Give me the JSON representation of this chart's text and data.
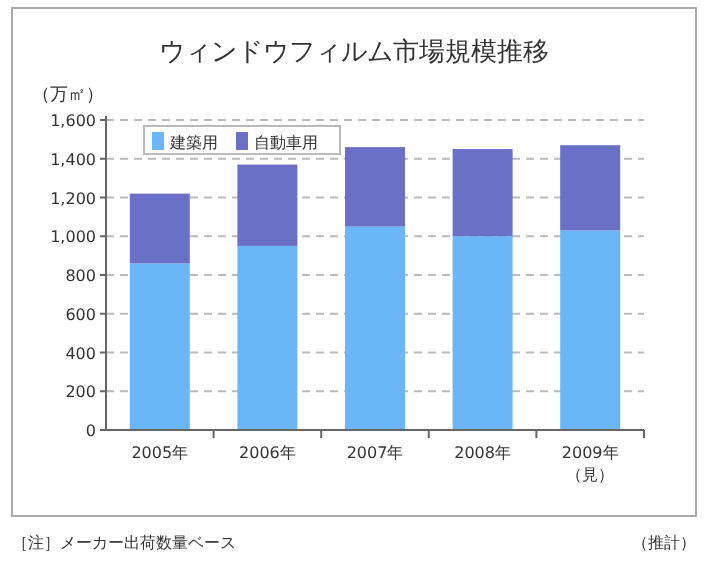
{
  "chart_data": {
    "type": "bar",
    "title": "ウィンドウフィルム市場規模推移",
    "ylabel": "（万㎡）",
    "categories": [
      "2005年",
      "2006年",
      "2007年",
      "2008年",
      "2009年（見）"
    ],
    "series": [
      {
        "name": "建築用",
        "color": "#6ab6f6",
        "values": [
          860,
          950,
          1050,
          1000,
          1030
        ]
      },
      {
        "name": "自動車用",
        "color": "#6a70c6",
        "values": [
          360,
          420,
          410,
          450,
          440
        ]
      }
    ],
    "stacked": true,
    "ylim": [
      0,
      1600
    ],
    "yticks": [
      {
        "value": 0,
        "label": "0"
      },
      {
        "value": 200,
        "label": "200"
      },
      {
        "value": 400,
        "label": "400"
      },
      {
        "value": 600,
        "label": "600"
      },
      {
        "value": 800,
        "label": "800"
      },
      {
        "value": 1000,
        "label": "1,000"
      },
      {
        "value": 1200,
        "label": "1,200"
      },
      {
        "value": 1400,
        "label": "1,400"
      },
      {
        "value": 1600,
        "label": "1,600"
      }
    ],
    "grid": "y",
    "legend": "top left",
    "annotations": [
      "［注］メーカー出荷数量ベース",
      "（推計）"
    ]
  }
}
